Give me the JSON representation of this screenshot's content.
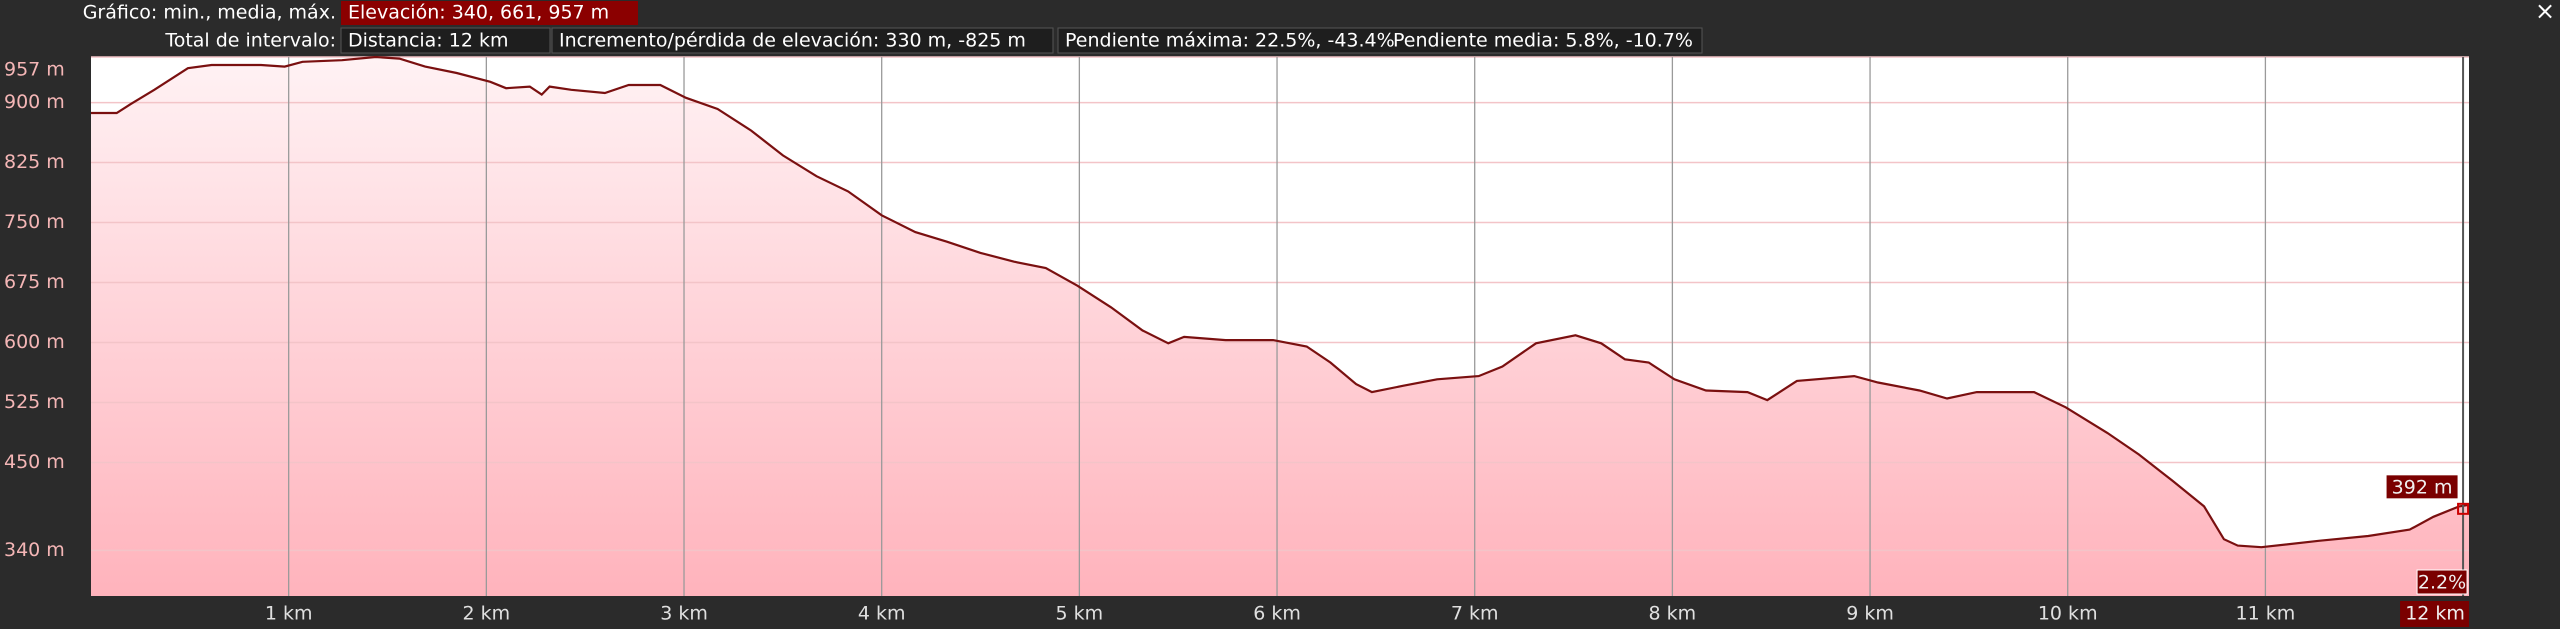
{
  "header": {
    "chart_label": "Gráfico: min., media, máx.",
    "elevation": "Elevación: 340, 661, 957 m",
    "total_label": "Total de intervalo:",
    "distance": "Distancia: 12 km",
    "gain_loss": "Incremento/pérdida de elevación: 330 m, -825 m",
    "max_slope": "Pendiente máxima: 22.5%, -43.4%",
    "avg_slope": "Pendiente media: 5.8%, -10.7%",
    "close": "×"
  },
  "chart_data": {
    "type": "area",
    "x": [
      0,
      0.13,
      0.2,
      0.32,
      0.49,
      0.61,
      0.86,
      0.98,
      1.07,
      1.27,
      1.44,
      1.56,
      1.69,
      1.85,
      2.02,
      2.1,
      2.22,
      2.28,
      2.32,
      2.43,
      2.6,
      2.72,
      2.88,
      3.01,
      3.17,
      3.34,
      3.5,
      3.67,
      3.83,
      4.0,
      4.17,
      4.33,
      4.5,
      4.67,
      4.83,
      4.99,
      5.16,
      5.32,
      5.45,
      5.53,
      5.74,
      5.98,
      6.15,
      6.27,
      6.4,
      6.48,
      6.64,
      6.81,
      7.02,
      7.14,
      7.31,
      7.51,
      7.64,
      7.76,
      7.88,
      8.01,
      8.17,
      8.38,
      8.48,
      8.63,
      8.92,
      9.04,
      9.25,
      9.39,
      9.54,
      9.83,
      9.99,
      10.2,
      10.36,
      10.53,
      10.69,
      10.79,
      10.86,
      10.98,
      11.27,
      11.52,
      11.73,
      11.85,
      11.98,
      12.03
    ],
    "series": [
      {
        "color": "#7a1010",
        "values": [
          887,
          887,
          898,
          916,
          943,
          947,
          947,
          945,
          951,
          953,
          957,
          955,
          945,
          937,
          926,
          918,
          920,
          910,
          920,
          916,
          912,
          922,
          922,
          906,
          892,
          865,
          834,
          808,
          789,
          759,
          738,
          726,
          712,
          701,
          693,
          671,
          644,
          615,
          599,
          607,
          603,
          603,
          595,
          575,
          548,
          538,
          546,
          554,
          558,
          570,
          599,
          609,
          599,
          579,
          575,
          554,
          540,
          538,
          528,
          552,
          558,
          550,
          540,
          530,
          538,
          538,
          519,
          487,
          460,
          427,
          395,
          354,
          346,
          344,
          352,
          358,
          366,
          382,
          395,
          397
        ]
      }
    ],
    "xlim": [
      0,
      12.03
    ],
    "ylim": [
      283,
      957
    ],
    "xticks": [
      {
        "value": 1,
        "label": "1 km"
      },
      {
        "value": 2,
        "label": "2 km"
      },
      {
        "value": 3,
        "label": "3 km"
      },
      {
        "value": 4,
        "label": "4 km"
      },
      {
        "value": 5,
        "label": "5 km"
      },
      {
        "value": 6,
        "label": "6 km"
      },
      {
        "value": 7,
        "label": "7 km"
      },
      {
        "value": 8,
        "label": "8 km"
      },
      {
        "value": 9,
        "label": "9 km"
      },
      {
        "value": 10,
        "label": "10 km"
      },
      {
        "value": 11,
        "label": "11 km"
      }
    ],
    "yticks": [
      {
        "value": 340,
        "label": "340 m"
      },
      {
        "value": 450,
        "label": "450 m"
      },
      {
        "value": 525,
        "label": "525 m"
      },
      {
        "value": 600,
        "label": "600 m"
      },
      {
        "value": 675,
        "label": "675 m"
      },
      {
        "value": 750,
        "label": "750 m"
      },
      {
        "value": 825,
        "label": "825 m"
      },
      {
        "value": 900,
        "label": "900 m"
      },
      {
        "value": 957,
        "label": "957 m"
      }
    ],
    "grid": true,
    "cursor": {
      "x": {
        "value": 12,
        "label": "12 km"
      },
      "elevation": {
        "value": 392,
        "label": "392 m"
      },
      "slope": {
        "value": 2.2,
        "label": "2.2%"
      }
    }
  }
}
